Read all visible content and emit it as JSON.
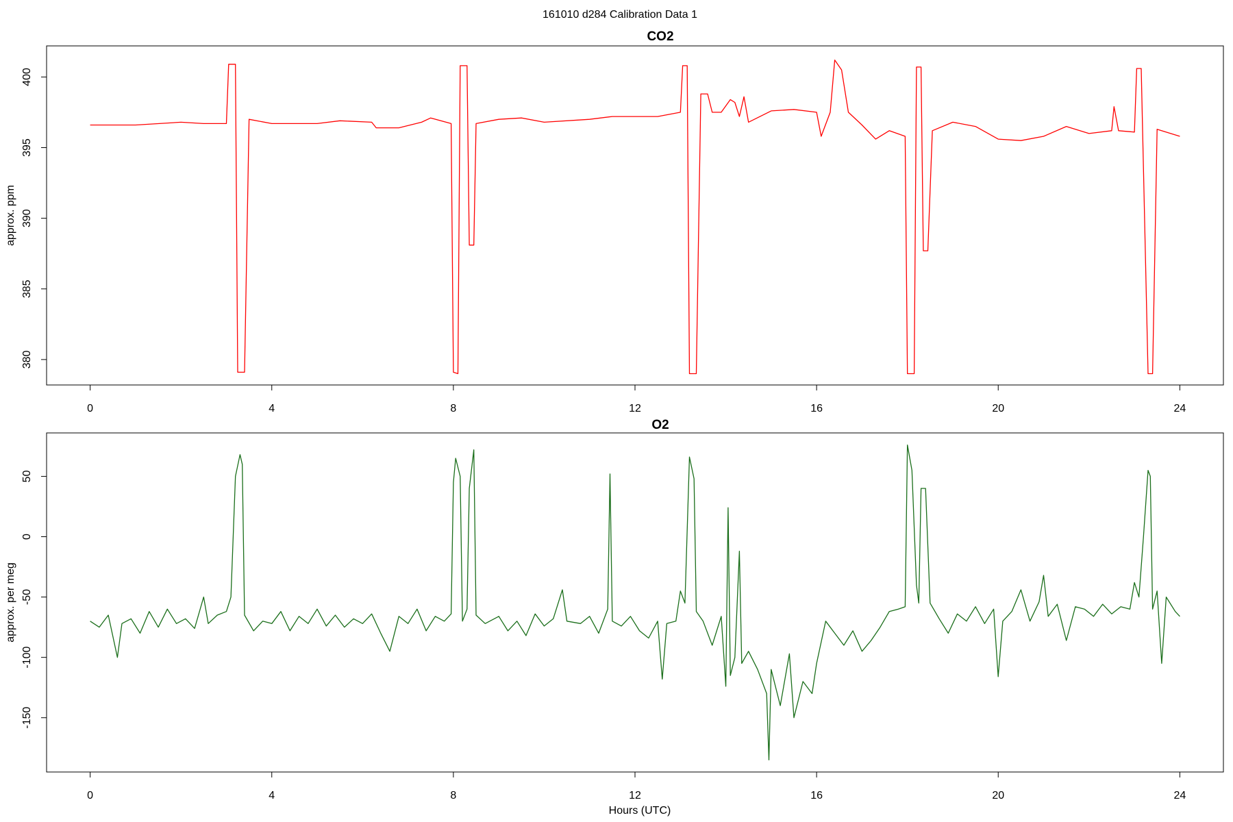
{
  "title": "161010   d284   Calibration Data 1",
  "chart_data": [
    {
      "type": "line",
      "title": "CO2",
      "y_label": "approx. ppm",
      "color": "#ff0000",
      "xlim": [
        -0.96,
        24.96
      ],
      "xticks": [
        0,
        4,
        8,
        12,
        16,
        20,
        24
      ],
      "ylim": [
        378.2,
        402.2
      ],
      "yticks": [
        380,
        385,
        390,
        395,
        400
      ],
      "x": [
        0,
        1,
        2,
        2.5,
        3.0,
        3.05,
        3.2,
        3.25,
        3.4,
        3.5,
        4,
        5,
        5.5,
        6.2,
        6.3,
        6.8,
        7.3,
        7.5,
        7.95,
        8.0,
        8.1,
        8.15,
        8.3,
        8.35,
        8.45,
        8.5,
        9,
        9.5,
        10,
        11,
        11.5,
        12,
        12.5,
        13.0,
        13.05,
        13.15,
        13.2,
        13.35,
        13.45,
        13.6,
        13.7,
        13.9,
        14.1,
        14.2,
        14.3,
        14.4,
        14.5,
        15,
        15.5,
        16,
        16.1,
        16.3,
        16.4,
        16.55,
        16.7,
        17,
        17.3,
        17.6,
        17.95,
        18.0,
        18.15,
        18.2,
        18.3,
        18.35,
        18.45,
        18.55,
        19,
        19.5,
        20,
        20.5,
        21,
        21.5,
        22,
        22.5,
        22.55,
        22.65,
        23.0,
        23.05,
        23.15,
        23.3,
        23.4,
        23.5,
        24
      ],
      "values": [
        396.6,
        396.6,
        396.8,
        396.7,
        396.7,
        400.9,
        400.9,
        379.1,
        379.1,
        397.0,
        396.7,
        396.7,
        396.9,
        396.8,
        396.4,
        396.4,
        396.8,
        397.1,
        396.7,
        379.1,
        379.0,
        400.8,
        400.8,
        388.1,
        388.1,
        396.7,
        397.0,
        397.1,
        396.8,
        397.0,
        397.2,
        397.2,
        397.2,
        397.5,
        400.8,
        400.8,
        379.0,
        379.0,
        398.8,
        398.8,
        397.5,
        397.5,
        398.4,
        398.2,
        397.2,
        398.6,
        396.8,
        397.6,
        397.7,
        397.5,
        395.8,
        397.5,
        401.2,
        400.5,
        397.5,
        396.6,
        395.6,
        396.2,
        395.8,
        379.0,
        379.0,
        400.7,
        400.7,
        387.7,
        387.7,
        396.2,
        396.8,
        396.5,
        395.6,
        395.5,
        395.8,
        396.5,
        396.0,
        396.2,
        397.9,
        396.2,
        396.1,
        400.6,
        400.6,
        379.0,
        379.0,
        396.3,
        395.8
      ]
    },
    {
      "type": "line",
      "title": "O2",
      "y_label": "approx. per meg",
      "x_label": "Hours (UTC)",
      "color": "#1a6e1a",
      "xlim": [
        -0.96,
        24.96
      ],
      "xticks": [
        0,
        4,
        8,
        12,
        16,
        20,
        24
      ],
      "ylim": [
        -195,
        86
      ],
      "yticks": [
        -150,
        -100,
        -50,
        0,
        50
      ],
      "x": [
        0,
        0.2,
        0.4,
        0.6,
        0.7,
        0.9,
        1.1,
        1.3,
        1.5,
        1.7,
        1.9,
        2.1,
        2.3,
        2.5,
        2.6,
        2.8,
        3.0,
        3.1,
        3.2,
        3.3,
        3.35,
        3.4,
        3.6,
        3.8,
        4,
        4.2,
        4.4,
        4.6,
        4.8,
        5,
        5.2,
        5.4,
        5.6,
        5.8,
        6,
        6.2,
        6.4,
        6.6,
        6.8,
        7,
        7.2,
        7.4,
        7.6,
        7.8,
        7.95,
        8.0,
        8.05,
        8.15,
        8.2,
        8.3,
        8.35,
        8.45,
        8.5,
        8.7,
        9,
        9.2,
        9.4,
        9.6,
        9.8,
        10,
        10.2,
        10.4,
        10.5,
        10.8,
        11,
        11.2,
        11.4,
        11.45,
        11.5,
        11.7,
        11.9,
        12.1,
        12.3,
        12.5,
        12.6,
        12.7,
        12.9,
        13.0,
        13.1,
        13.2,
        13.3,
        13.35,
        13.5,
        13.7,
        13.9,
        14.0,
        14.05,
        14.1,
        14.2,
        14.3,
        14.35,
        14.5,
        14.7,
        14.9,
        14.95,
        15.0,
        15.2,
        15.4,
        15.5,
        15.7,
        15.9,
        16,
        16.2,
        16.4,
        16.6,
        16.8,
        17,
        17.2,
        17.4,
        17.6,
        17.8,
        17.95,
        18.0,
        18.1,
        18.2,
        18.25,
        18.3,
        18.4,
        18.5,
        18.7,
        18.9,
        19.1,
        19.3,
        19.5,
        19.7,
        19.9,
        20,
        20.1,
        20.3,
        20.5,
        20.7,
        20.9,
        21,
        21.1,
        21.3,
        21.5,
        21.7,
        21.9,
        22.1,
        22.3,
        22.5,
        22.7,
        22.9,
        23.0,
        23.1,
        23.2,
        23.3,
        23.35,
        23.4,
        23.5,
        23.6,
        23.7,
        23.9,
        24
      ],
      "values": [
        -70,
        -75,
        -65,
        -100,
        -72,
        -68,
        -80,
        -62,
        -75,
        -60,
        -72,
        -68,
        -76,
        -50,
        -72,
        -65,
        -62,
        -50,
        50,
        68,
        60,
        -65,
        -78,
        -70,
        -72,
        -62,
        -78,
        -66,
        -72,
        -60,
        -74,
        -65,
        -75,
        -68,
        -72,
        -64,
        -80,
        -95,
        -66,
        -72,
        -60,
        -78,
        -66,
        -70,
        -64,
        45,
        65,
        50,
        -70,
        -60,
        40,
        72,
        -65,
        -72,
        -66,
        -78,
        -70,
        -82,
        -64,
        -74,
        -68,
        -44,
        -70,
        -72,
        -66,
        -80,
        -60,
        52,
        -70,
        -74,
        -66,
        -78,
        -84,
        -70,
        -118,
        -72,
        -70,
        -45,
        -55,
        66,
        48,
        -62,
        -70,
        -90,
        -66,
        -124,
        24,
        -115,
        -100,
        -12,
        -105,
        -95,
        -110,
        -130,
        -185,
        -110,
        -140,
        -97,
        -150,
        -120,
        -130,
        -105,
        -70,
        -80,
        -90,
        -78,
        -95,
        -86,
        -75,
        -62,
        -60,
        -58,
        76,
        55,
        -40,
        -55,
        40,
        40,
        -55,
        -68,
        -80,
        -64,
        -70,
        -58,
        -72,
        -60,
        -116,
        -70,
        -62,
        -44,
        -70,
        -54,
        -32,
        -66,
        -56,
        -86,
        -58,
        -60,
        -66,
        -56,
        -64,
        -58,
        -60,
        -38,
        -50,
        0,
        55,
        50,
        -60,
        -45,
        -105,
        -50,
        -62,
        -66
      ]
    }
  ]
}
